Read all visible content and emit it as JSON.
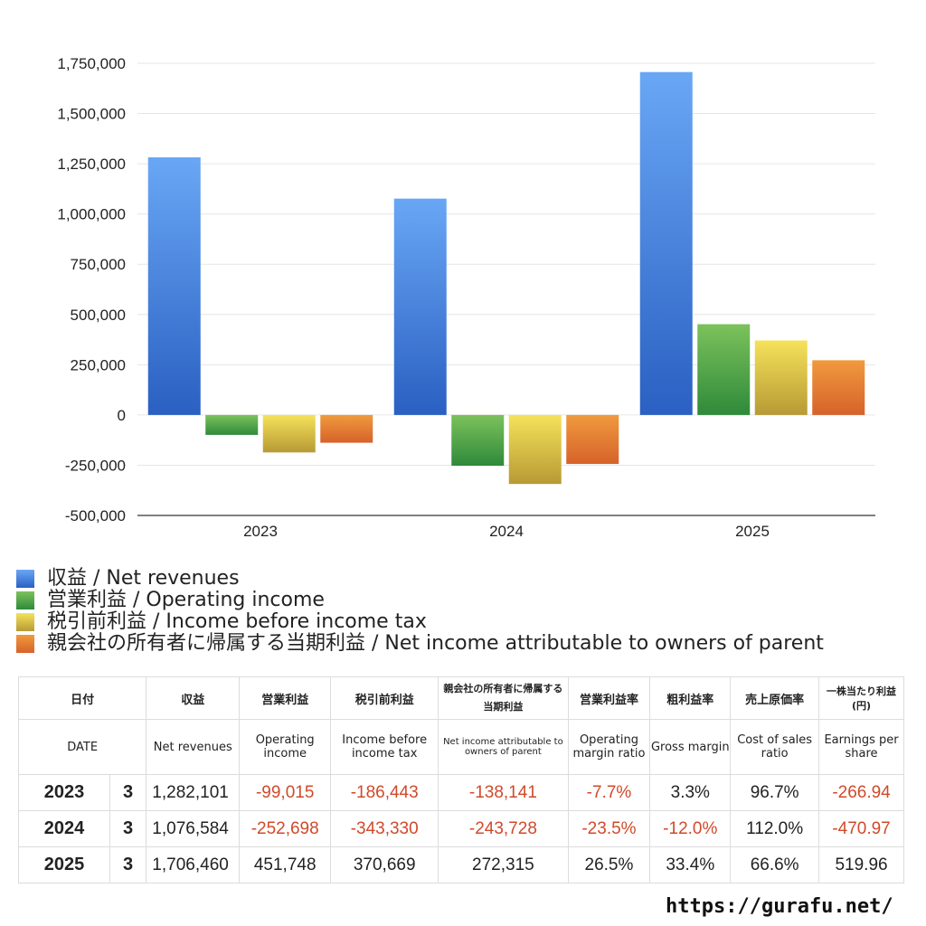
{
  "chart_data": {
    "type": "bar",
    "categories": [
      "2023",
      "2024",
      "2025"
    ],
    "series": [
      {
        "name": "収益 / Net revenues",
        "values": [
          1282101,
          1076584,
          1706460
        ],
        "color_top": "#69a7f5",
        "color_bottom": "#2a60c2"
      },
      {
        "name": "営業利益 / Operating income",
        "values": [
          -99015,
          -252698,
          451748
        ],
        "color_top": "#7cc25c",
        "color_bottom": "#2f8a3a"
      },
      {
        "name": "税引前利益 / Income before income tax",
        "values": [
          -186443,
          -343330,
          370669
        ],
        "color_top": "#f5e25a",
        "color_bottom": "#b79a35"
      },
      {
        "name": "親会社の所有者に帰属する当期利益 / Net income attributable to owners of parent",
        "values": [
          -138141,
          -243728,
          272315
        ],
        "color_top": "#f09a3e",
        "color_bottom": "#d6622a"
      }
    ],
    "ylim": [
      -500000,
      1750000
    ],
    "yticks": [
      -500000,
      -250000,
      0,
      250000,
      500000,
      750000,
      1000000,
      1250000,
      1500000,
      1750000
    ],
    "ytick_labels": [
      "-500,000",
      "-250,000",
      "0",
      "250,000",
      "500,000",
      "750,000",
      "1,000,000",
      "1,250,000",
      "1,500,000",
      "1,750,000"
    ],
    "grid": true,
    "legend_placement": "bottom"
  },
  "table": {
    "header_jp": [
      "日付",
      "",
      "収益",
      "営業利益",
      "税引前利益",
      "親会社の所有者に帰属する当期利益",
      "営業利益率",
      "粗利益率",
      "売上原価率",
      "一株当たり利益(円)"
    ],
    "header_en": [
      "DATE",
      "",
      "Net revenues",
      "Operating income",
      "Income before income tax",
      "Net income attributable to owners of parent",
      "Operating margin ratio",
      "Gross margin",
      "Cost of sales ratio",
      "Earnings per share"
    ],
    "rows": [
      [
        "2023",
        "3",
        "1,282,101",
        "-99,015",
        "-186,443",
        "-138,141",
        "-7.7%",
        "3.3%",
        "96.7%",
        "-266.94"
      ],
      [
        "2024",
        "3",
        "1,076,584",
        "-252,698",
        "-343,330",
        "-243,728",
        "-23.5%",
        "-12.0%",
        "112.0%",
        "-470.97"
      ],
      [
        "2025",
        "3",
        "1,706,460",
        "451,748",
        "370,669",
        "272,315",
        "26.5%",
        "33.4%",
        "66.6%",
        "519.96"
      ]
    ]
  },
  "footer": {
    "url": "https://gurafu.net/"
  }
}
